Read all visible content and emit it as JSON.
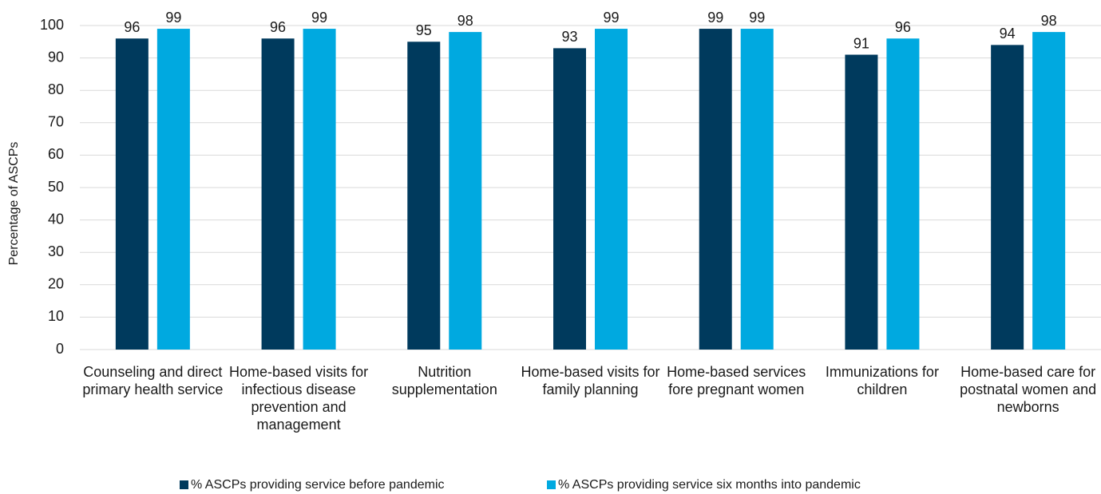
{
  "chart_data": {
    "type": "bar",
    "y_label": "Percentage of ASCPs",
    "categories": [
      "Counseling and direct primary health service",
      "Home-based visits for infectious disease prevention and management",
      "Nutrition supplementation",
      "Home-based visits for family planning",
      "Home-based services fore pregnant women",
      "Immunizations for children",
      "Home-based care for postnatal women and newborns"
    ],
    "series": [
      {
        "name": "% ASCPs providing service before pandemic",
        "color": "#003a5d",
        "values": [
          96,
          96,
          95,
          93,
          99,
          91,
          94
        ]
      },
      {
        "name": "% ASCPs providing service six months into pandemic",
        "color": "#00a9e0",
        "values": [
          99,
          99,
          98,
          99,
          99,
          96,
          98
        ]
      }
    ],
    "ylim": [
      0,
      100
    ],
    "yticks": [
      0,
      10,
      20,
      30,
      40,
      50,
      60,
      70,
      80,
      90,
      100
    ],
    "grid": true,
    "legend": "bottom"
  }
}
